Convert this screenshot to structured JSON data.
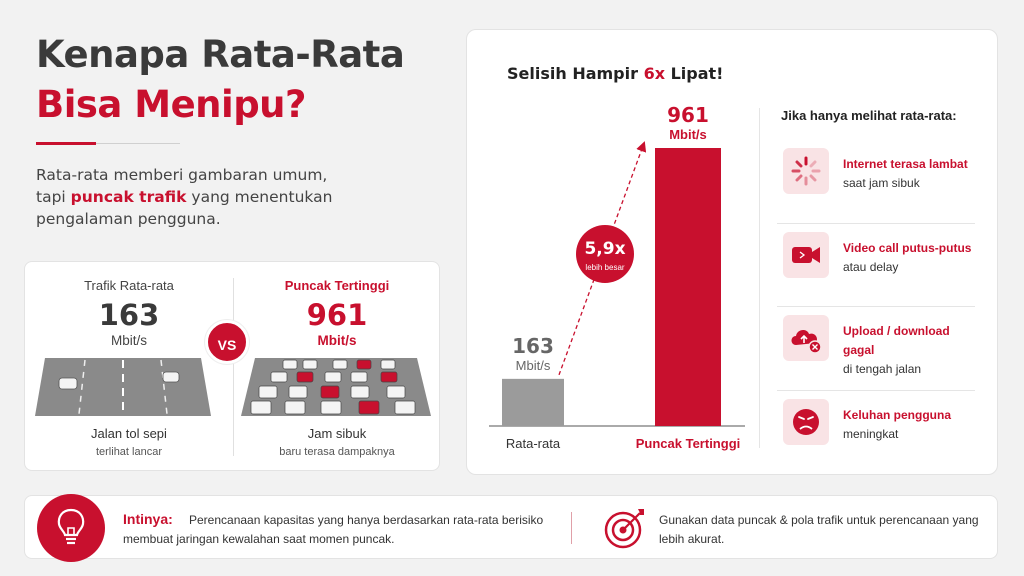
{
  "title": {
    "line1": "Kenapa Rata-Rata",
    "line2": "Bisa Menipu?"
  },
  "intro": {
    "part1": "Rata-rata memberi gambaran umum, tapi ",
    "highlight": "puncak trafik",
    "part2": " yang menentukan pengalaman pengguna."
  },
  "comparison": {
    "vs_label": "VS",
    "left": {
      "heading": "Trafik Rata-rata",
      "value": "163",
      "unit": "Mbit/s",
      "caption": "Jalan tol sepi",
      "subcaption": "terlihat lancar"
    },
    "right": {
      "heading": "Puncak Tertinggi",
      "value": "961",
      "unit": "Mbit/s",
      "caption": "Jam sibuk",
      "subcaption": "baru terasa dampaknya"
    }
  },
  "chart_data": {
    "type": "bar",
    "title_parts": [
      "Selisih Hampir ",
      "6x",
      " Lipat!"
    ],
    "categories": [
      "Rata-rata",
      "Puncak Tertinggi"
    ],
    "values": [
      163,
      961
    ],
    "value_labels": [
      "163",
      "961"
    ],
    "unit": "Mbit/s",
    "ratio_label": "5,9x",
    "ratio_sublabel": "lebih besar",
    "colors": [
      "#9b9b9b",
      "#c8102e"
    ],
    "ylim": [
      0,
      961
    ],
    "grid": false
  },
  "impacts": {
    "heading": "Jika hanya melihat rata-rata:",
    "items": [
      {
        "icon": "loading-spinner-icon",
        "title": "Internet terasa lambat",
        "desc": "saat jam sibuk"
      },
      {
        "icon": "video-camera-icon",
        "title": "Video call putus-putus",
        "desc": "atau delay"
      },
      {
        "icon": "cloud-upload-error-icon",
        "title": "Upload / download gagal",
        "desc": "di tengah jalan"
      },
      {
        "icon": "angry-face-icon",
        "title": "Keluhan pengguna",
        "desc": "meningkat"
      }
    ]
  },
  "bottom": {
    "key_label": "Intinya:",
    "key_text": "Perencanaan kapasitas yang hanya berdasarkan rata-rata berisiko membuat jaringan kewalahan saat momen puncak.",
    "recommendation": "Gunakan data puncak & pola trafik untuk perencanaan yang lebih akurat."
  },
  "colors": {
    "accent": "#c8102e",
    "neutral_bar": "#9b9b9b",
    "background": "#f2f2f2"
  }
}
